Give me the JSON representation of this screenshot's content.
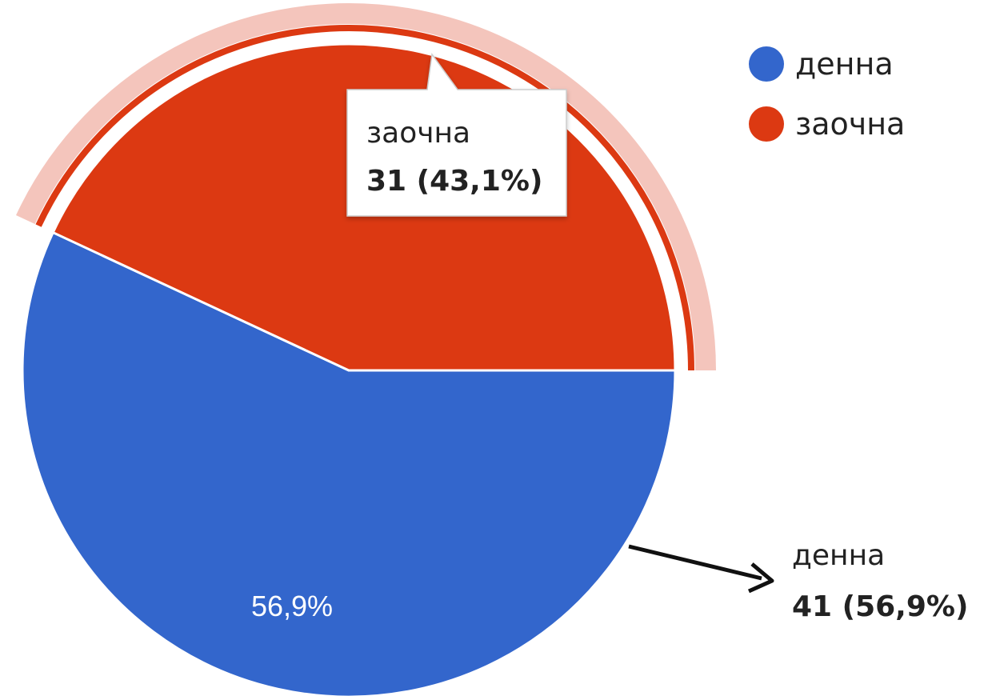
{
  "chart_data": {
    "type": "pie",
    "categories": [
      "денна",
      "заочна"
    ],
    "values": [
      41,
      31
    ],
    "percent_labels": [
      "56,9%",
      "43,1%"
    ],
    "colors": [
      "#3366cc",
      "#dc3912"
    ],
    "highlight_color": "#f4c5bc",
    "legend": {
      "position": "top-right",
      "items": [
        {
          "label": "денна",
          "color": "#3366cc"
        },
        {
          "label": "заочна",
          "color": "#dc3912"
        }
      ]
    },
    "slice_label": "56,9%",
    "tooltip": {
      "name": "заочна",
      "value": "31 (43,1%)"
    },
    "callout": {
      "name": "денна",
      "value": "41 (56,9%)"
    }
  }
}
